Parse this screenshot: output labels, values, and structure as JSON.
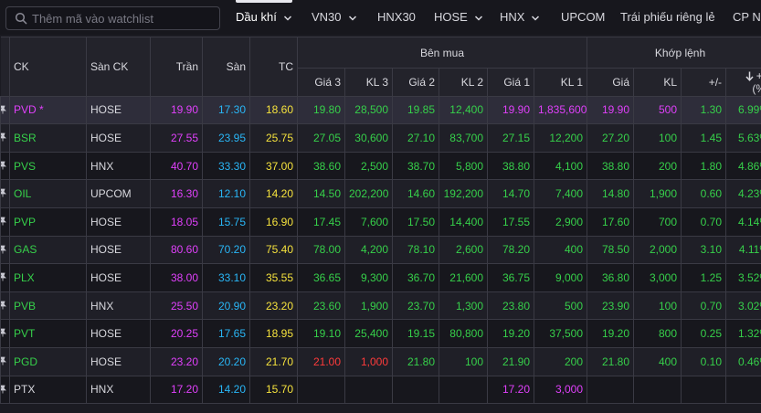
{
  "search": {
    "placeholder": "Thêm mã vào watchlist",
    "icon": "search-icon"
  },
  "tabs": [
    {
      "label": "Dầu khí",
      "dropdown": true,
      "active": true
    },
    {
      "label": "VN30",
      "dropdown": true
    },
    {
      "label": "HNX30",
      "dropdown": false
    },
    {
      "label": "HOSE",
      "dropdown": true
    },
    {
      "label": "HNX",
      "dropdown": true
    },
    {
      "label": "UPCOM",
      "dropdown": false
    },
    {
      "label": "Trái phiếu riêng lẻ",
      "dropdown": false
    },
    {
      "label": "CP N",
      "dropdown": false
    }
  ],
  "table": {
    "headers": {
      "ck": "CK",
      "exchange": "Sàn CK",
      "ceiling": "Trần",
      "floor": "Sàn",
      "ref": "TC",
      "bid_group": "Bên mua",
      "match_group": "Khớp lệnh",
      "bid3": "Giá 3",
      "vol3": "KL 3",
      "bid2": "Giá 2",
      "vol2": "KL 2",
      "bid1": "Giá 1",
      "vol1": "KL 1",
      "price": "Giá",
      "vol": "KL",
      "change": "+/-",
      "pct_line1": "+/-",
      "pct_line2": "(%)"
    },
    "rows": [
      {
        "ck": "PVD *",
        "exchange": "HOSE",
        "ceil": "19.90",
        "floor": "17.30",
        "ref": "18.60",
        "b3": "19.80",
        "v3": "28,500",
        "b2": "19.85",
        "v2": "12,400",
        "b1": "19.90",
        "v1": "1,835,600",
        "price": "19.90",
        "vol": "500",
        "chg": "1.30",
        "pct": "6.99%",
        "c_ck": "#e040fb",
        "c_b3": "#36d04a",
        "c_b2": "#36d04a",
        "c_b1": "#e040fb",
        "c_m": "#e040fb",
        "c_chg": "#36d04a"
      },
      {
        "ck": "BSR",
        "exchange": "HOSE",
        "ceil": "27.55",
        "floor": "23.95",
        "ref": "25.75",
        "b3": "27.05",
        "v3": "30,600",
        "b2": "27.10",
        "v2": "83,700",
        "b1": "27.15",
        "v1": "12,200",
        "price": "27.20",
        "vol": "100",
        "chg": "1.45",
        "pct": "5.63%",
        "c_ck": "#36d04a",
        "c_b3": "#36d04a",
        "c_b2": "#36d04a",
        "c_b1": "#36d04a",
        "c_m": "#36d04a",
        "c_chg": "#36d04a"
      },
      {
        "ck": "PVS",
        "exchange": "HNX",
        "ceil": "40.70",
        "floor": "33.30",
        "ref": "37.00",
        "b3": "38.60",
        "v3": "2,500",
        "b2": "38.70",
        "v2": "5,800",
        "b1": "38.80",
        "v1": "4,100",
        "price": "38.80",
        "vol": "200",
        "chg": "1.80",
        "pct": "4.86%",
        "c_ck": "#36d04a",
        "c_b3": "#36d04a",
        "c_b2": "#36d04a",
        "c_b1": "#36d04a",
        "c_m": "#36d04a",
        "c_chg": "#36d04a"
      },
      {
        "ck": "OIL",
        "exchange": "UPCOM",
        "ceil": "16.30",
        "floor": "12.10",
        "ref": "14.20",
        "b3": "14.50",
        "v3": "202,200",
        "b2": "14.60",
        "v2": "192,200",
        "b1": "14.70",
        "v1": "7,400",
        "price": "14.80",
        "vol": "1,900",
        "chg": "0.60",
        "pct": "4.23%",
        "c_ck": "#36d04a",
        "c_b3": "#36d04a",
        "c_b2": "#36d04a",
        "c_b1": "#36d04a",
        "c_m": "#36d04a",
        "c_chg": "#36d04a"
      },
      {
        "ck": "PVP",
        "exchange": "HOSE",
        "ceil": "18.05",
        "floor": "15.75",
        "ref": "16.90",
        "b3": "17.45",
        "v3": "7,600",
        "b2": "17.50",
        "v2": "14,400",
        "b1": "17.55",
        "v1": "2,900",
        "price": "17.60",
        "vol": "700",
        "chg": "0.70",
        "pct": "4.14%",
        "c_ck": "#36d04a",
        "c_b3": "#36d04a",
        "c_b2": "#36d04a",
        "c_b1": "#36d04a",
        "c_m": "#36d04a",
        "c_chg": "#36d04a"
      },
      {
        "ck": "GAS",
        "exchange": "HOSE",
        "ceil": "80.60",
        "floor": "70.20",
        "ref": "75.40",
        "b3": "78.00",
        "v3": "4,200",
        "b2": "78.10",
        "v2": "2,600",
        "b1": "78.20",
        "v1": "400",
        "price": "78.50",
        "vol": "2,000",
        "chg": "3.10",
        "pct": "4.11%",
        "c_ck": "#36d04a",
        "c_b3": "#36d04a",
        "c_b2": "#36d04a",
        "c_b1": "#36d04a",
        "c_m": "#36d04a",
        "c_chg": "#36d04a"
      },
      {
        "ck": "PLX",
        "exchange": "HOSE",
        "ceil": "38.00",
        "floor": "33.10",
        "ref": "35.55",
        "b3": "36.65",
        "v3": "9,300",
        "b2": "36.70",
        "v2": "21,600",
        "b1": "36.75",
        "v1": "9,000",
        "price": "36.80",
        "vol": "3,000",
        "chg": "1.25",
        "pct": "3.52%",
        "c_ck": "#36d04a",
        "c_b3": "#36d04a",
        "c_b2": "#36d04a",
        "c_b1": "#36d04a",
        "c_m": "#36d04a",
        "c_chg": "#36d04a"
      },
      {
        "ck": "PVB",
        "exchange": "HNX",
        "ceil": "25.50",
        "floor": "20.90",
        "ref": "23.20",
        "b3": "23.60",
        "v3": "1,900",
        "b2": "23.70",
        "v2": "1,300",
        "b1": "23.80",
        "v1": "500",
        "price": "23.90",
        "vol": "100",
        "chg": "0.70",
        "pct": "3.02%",
        "c_ck": "#36d04a",
        "c_b3": "#36d04a",
        "c_b2": "#36d04a",
        "c_b1": "#36d04a",
        "c_m": "#36d04a",
        "c_chg": "#36d04a"
      },
      {
        "ck": "PVT",
        "exchange": "HOSE",
        "ceil": "20.25",
        "floor": "17.65",
        "ref": "18.95",
        "b3": "19.10",
        "v3": "25,400",
        "b2": "19.15",
        "v2": "80,800",
        "b1": "19.20",
        "v1": "37,500",
        "price": "19.20",
        "vol": "800",
        "chg": "0.25",
        "pct": "1.32%",
        "c_ck": "#36d04a",
        "c_b3": "#36d04a",
        "c_b2": "#36d04a",
        "c_b1": "#36d04a",
        "c_m": "#36d04a",
        "c_chg": "#36d04a"
      },
      {
        "ck": "PGD",
        "exchange": "HOSE",
        "ceil": "23.20",
        "floor": "20.20",
        "ref": "21.70",
        "b3": "21.00",
        "v3": "1,000",
        "b2": "21.80",
        "v2": "100",
        "b1": "21.90",
        "v1": "200",
        "price": "21.80",
        "vol": "400",
        "chg": "0.10",
        "pct": "0.46%",
        "c_ck": "#36d04a",
        "c_b3": "#ff3b3b",
        "c_b2": "#36d04a",
        "c_b1": "#36d04a",
        "c_m": "#36d04a",
        "c_chg": "#36d04a"
      },
      {
        "ck": "PTX",
        "exchange": "HNX",
        "ceil": "17.20",
        "floor": "14.20",
        "ref": "15.70",
        "b3": "",
        "v3": "",
        "b2": "",
        "v2": "",
        "b1": "17.20",
        "v1": "3,000",
        "price": "",
        "vol": "",
        "chg": "",
        "pct": "",
        "c_ck": "#d8d8de",
        "c_b3": "#d8d8de",
        "c_b2": "#d8d8de",
        "c_b1": "#e040fb",
        "c_m": "#d8d8de",
        "c_chg": "#d8d8de"
      }
    ]
  },
  "colors": {
    "ceiling": "#e040fb",
    "floor": "#29b6f6",
    "reference": "#f5e23d",
    "up": "#36d04a",
    "down": "#ff3b3b",
    "neutral": "#d8d8de"
  },
  "icons": {
    "pin": "pin-icon",
    "sort": "sort-down-arrow-icon",
    "dropdown": "chevron-down-icon"
  }
}
